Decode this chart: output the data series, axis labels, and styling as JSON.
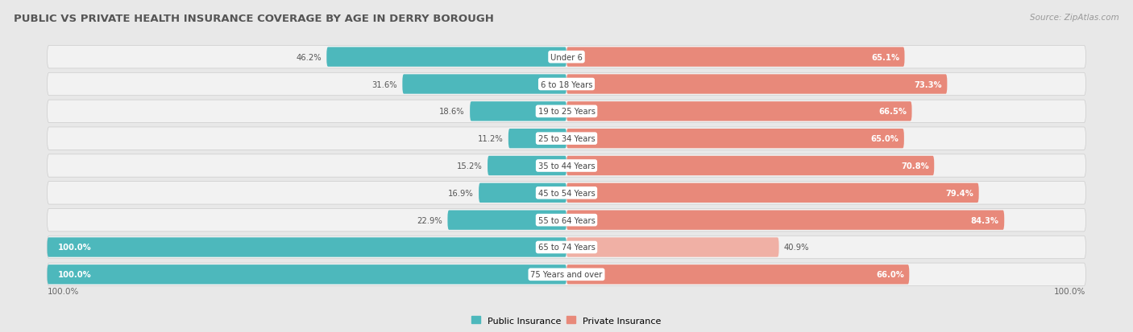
{
  "title": "PUBLIC VS PRIVATE HEALTH INSURANCE COVERAGE BY AGE IN DERRY BOROUGH",
  "source": "Source: ZipAtlas.com",
  "categories": [
    "Under 6",
    "6 to 18 Years",
    "19 to 25 Years",
    "25 to 34 Years",
    "35 to 44 Years",
    "45 to 54 Years",
    "55 to 64 Years",
    "65 to 74 Years",
    "75 Years and over"
  ],
  "public": [
    46.2,
    31.6,
    18.6,
    11.2,
    15.2,
    16.9,
    22.9,
    100.0,
    100.0
  ],
  "private": [
    65.1,
    73.3,
    66.5,
    65.0,
    70.8,
    79.4,
    84.3,
    40.9,
    66.0
  ],
  "public_color": "#4db8bc",
  "private_color": "#e8897a",
  "private_color_light": "#f0b0a5",
  "bg_color": "#e8e8e8",
  "row_bg_color": "#f2f2f2",
  "title_color": "#555555",
  "source_color": "#999999",
  "legend_public": "Public Insurance",
  "legend_private": "Private Insurance",
  "figsize": [
    14.06,
    4.14
  ],
  "dpi": 100
}
